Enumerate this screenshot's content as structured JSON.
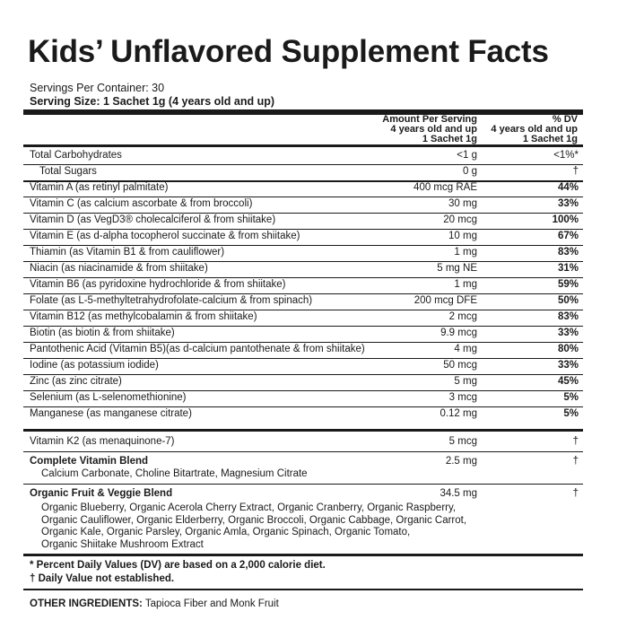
{
  "title": "Kids’ Unflavored Supplement Facts",
  "servings_per_container": "Servings Per Container: 30",
  "serving_size": "Serving Size: 1 Sachet 1g (4 years old and up)",
  "header": {
    "amount": [
      "Amount Per Serving",
      "4 years old and up",
      "1 Sachet 1g"
    ],
    "dv": [
      "% DV",
      "4 years old and up",
      "1 Sachet 1g"
    ]
  },
  "rows": [
    {
      "name": "Total Carbohydrates",
      "amount": "<1 g",
      "dv": "<1%*",
      "indent": false
    },
    {
      "name": "Total Sugars",
      "amount": "0 g",
      "dv": "†",
      "indent": true
    },
    {
      "name": "Vitamin A (as retinyl palmitate)",
      "amount": "400 mcg RAE",
      "dv": "44%",
      "indent": false
    },
    {
      "name": "Vitamin C (as calcium ascorbate & from broccoli)",
      "amount": "30 mg",
      "dv": "33%",
      "indent": false
    },
    {
      "name": "Vitamin D (as VegD3® cholecalciferol & from shiitake)",
      "amount": "20 mcg",
      "dv": "100%",
      "indent": false
    },
    {
      "name": "Vitamin E (as d-alpha tocopherol succinate & from shiitake)",
      "amount": "10 mg",
      "dv": "67%",
      "indent": false
    },
    {
      "name": "Thiamin (as Vitamin B1 & from cauliflower)",
      "amount": "1 mg",
      "dv": "83%",
      "indent": false
    },
    {
      "name": "Niacin (as niacinamide & from shiitake)",
      "amount": "5 mg NE",
      "dv": "31%",
      "indent": false
    },
    {
      "name": "Vitamin B6 (as pyridoxine hydrochloride & from shiitake)",
      "amount": "1 mg",
      "dv": "59%",
      "indent": false
    },
    {
      "name": "Folate (as L-5-methyltetrahydrofolate-calcium & from spinach)",
      "amount": "200 mcg DFE",
      "dv": "50%",
      "indent": false
    },
    {
      "name": "Vitamin B12 (as methylcobalamin & from shiitake)",
      "amount": "2 mcg",
      "dv": "83%",
      "indent": false
    },
    {
      "name": "Biotin (as biotin & from shiitake)",
      "amount": "9.9 mcg",
      "dv": "33%",
      "indent": false
    },
    {
      "name": "Pantothenic Acid (Vitamin B5)(as d-calcium pantothenate & from shiitake)",
      "amount": "4 mg",
      "dv": "80%",
      "indent": false
    },
    {
      "name": "Iodine (as potassium iodide)",
      "amount": "50 mcg",
      "dv": "33%",
      "indent": false
    },
    {
      "name": "Zinc (as zinc citrate)",
      "amount": "5 mg",
      "dv": "45%",
      "indent": false
    },
    {
      "name": "Selenium (as L-selenomethionine)",
      "amount": "3 mcg",
      "dv": "5%",
      "indent": false
    },
    {
      "name": "Manganese (as manganese citrate)",
      "amount": "0.12 mg",
      "dv": "5%",
      "indent": false
    }
  ],
  "k2": {
    "name": "Vitamin K2 (as menaquinone-7)",
    "amount": "5 mcg",
    "dv": "†"
  },
  "vitamin_blend": {
    "name": "Complete Vitamin Blend",
    "amount": "2.5 mg",
    "dv": "†",
    "contents": "Calcium Carbonate, Choline Bitartrate, Magnesium Citrate"
  },
  "fruit_blend": {
    "name": "Organic Fruit & Veggie Blend",
    "amount": "34.5 mg",
    "dv": "†",
    "contents": [
      "Organic Blueberry, Organic Acerola Cherry Extract, Organic Cranberry, Organic Raspberry,",
      "Organic Cauliflower, Organic Elderberry, Organic Broccoli, Organic Cabbage, Organic Carrot,",
      "Organic Kale, Organic Parsley, Organic Amla, Organic Spinach, Organic Tomato,",
      "Organic Shiitake Mushroom Extract"
    ]
  },
  "footnotes": [
    "* Percent Daily Values (DV) are based on a 2,000 calorie diet.",
    "† Daily Value not established."
  ],
  "other_ingredients": {
    "label": "OTHER INGREDIENTS:",
    "text": "Tapioca Fiber and Monk Fruit"
  }
}
